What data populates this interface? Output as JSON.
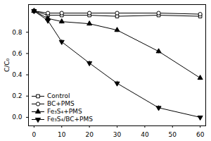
{
  "chart_data": {
    "type": "line",
    "y_label": "C/C₀",
    "x": [
      0,
      5,
      10,
      20,
      30,
      45,
      60
    ],
    "xlim": [
      -2,
      62
    ],
    "xticks": [
      0,
      10,
      20,
      30,
      40,
      50,
      60
    ],
    "ylim": [
      -0.08,
      1.06
    ],
    "yticks": [
      {
        "value": 0,
        "label": "0.0"
      },
      0.2,
      0.4,
      0.6,
      0.8
    ],
    "legend": "lower left",
    "series": [
      {
        "name": "Control",
        "color": "#000000",
        "marker": "square",
        "line_style": "solid",
        "values": [
          1.0,
          0.96,
          0.96,
          0.96,
          0.95,
          0.96,
          0.95
        ],
        "errors": [
          0,
          0.01,
          0.01,
          0.01,
          0.01,
          0.01,
          0.01
        ]
      },
      {
        "name": "BC+PMS",
        "color": "#000000",
        "marker": "circle",
        "line_style": "solid",
        "values": [
          1.0,
          0.98,
          0.98,
          0.98,
          0.98,
          0.98,
          0.97
        ],
        "errors": [
          0,
          0.01,
          0.01,
          0.01,
          0.01,
          0.01,
          0.01
        ]
      },
      {
        "name": "Fe₃S₄+PMS",
        "color": "#000000",
        "marker": "triangle",
        "line_style": "solid",
        "values": [
          1.0,
          0.93,
          0.9,
          0.88,
          0.82,
          0.62,
          0.37
        ],
        "errors": [
          0,
          0.01,
          0.02,
          0.02,
          0.02,
          0.02,
          0.02
        ]
      },
      {
        "name": "Fe₃S₄/BC+PMS",
        "color": "#000000",
        "marker": "triangle-down",
        "line_style": "solid",
        "values": [
          1.0,
          0.91,
          0.71,
          0.51,
          0.32,
          0.09,
          0.0
        ],
        "errors": [
          0,
          0.01,
          0.02,
          0.02,
          0.02,
          0.02,
          0.01
        ]
      }
    ]
  }
}
